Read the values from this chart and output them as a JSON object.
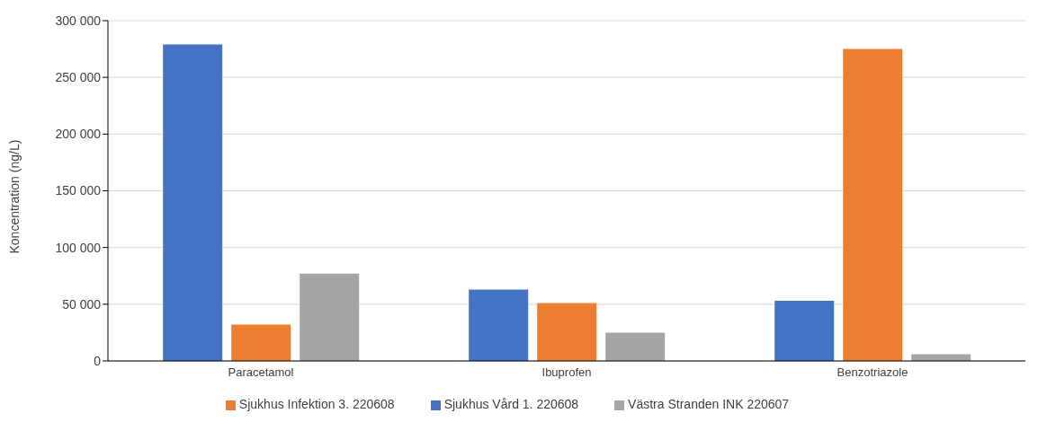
{
  "chart_data": {
    "type": "bar",
    "ylabel": "Koncentration (ng/L)",
    "categories": [
      "Paracetamol",
      "Ibuprofen",
      "Benzotriazole"
    ],
    "series": [
      {
        "name": "Sjukhus Vård 1. 220608",
        "color": "#4472c4",
        "values": [
          279000,
          63000,
          53000
        ]
      },
      {
        "name": "Sjukhus Infektion 3. 220608",
        "color": "#ed7d31",
        "values": [
          32000,
          51000,
          275000
        ]
      },
      {
        "name": "Västra Stranden INK 220607",
        "color": "#a5a5a5",
        "values": [
          77000,
          25000,
          6000
        ]
      }
    ],
    "ylim": [
      0,
      300000
    ],
    "yticks": [
      {
        "value": 0,
        "label": "0"
      },
      {
        "value": 50000,
        "label": "50 000"
      },
      {
        "value": 100000,
        "label": "100 000"
      },
      {
        "value": 150000,
        "label": "150 000"
      },
      {
        "value": 200000,
        "label": "200 000"
      },
      {
        "value": 250000,
        "label": "250 000"
      },
      {
        "value": 300000,
        "label": "300 000"
      }
    ],
    "grid": "y",
    "legend": "bottom"
  }
}
